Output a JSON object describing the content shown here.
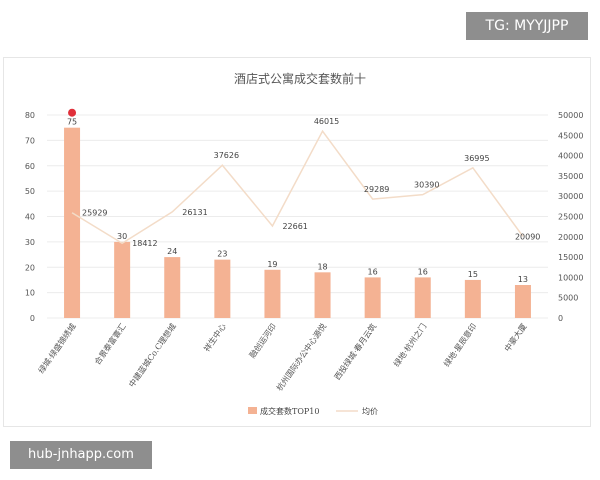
{
  "badges": {
    "tg": "TG: MYYJJPP",
    "site": "hub-jnhapp.com"
  },
  "colors": {
    "bar": "#f4b293",
    "line": "#f3dcc8",
    "grid": "#ececec",
    "marker": "#e0303a"
  },
  "chart_data": {
    "type": "bar",
    "title": "酒店式公寓成交套数前十",
    "categories": [
      "绿城·绿盛锦绣城",
      "合景泰富寰汇",
      "中建蓝城Co.C理想城",
      "祥生中心",
      "融创运河印",
      "杭州国际办公中心源悦",
      "西投绿城·春月云筑",
      "绿地·杭州之门",
      "绿地·星辰意印",
      "中豪大厦"
    ],
    "series": [
      {
        "name": "成交套数TOP10",
        "type": "bar",
        "axis": "left",
        "values": [
          75,
          30,
          24,
          23,
          19,
          18,
          16,
          16,
          15,
          13
        ],
        "labels": [
          "75",
          "30",
          "24",
          "23",
          "19",
          "18",
          "16",
          "16",
          "15",
          "13"
        ]
      },
      {
        "name": "均价",
        "type": "line",
        "axis": "right",
        "values": [
          25929,
          18412,
          26131,
          37626,
          22661,
          46015,
          29289,
          30390,
          36995,
          20090
        ],
        "labels": [
          "25929",
          "18412",
          "26131",
          "37626",
          "22661",
          "46015",
          "29289",
          "30390",
          "36995",
          "20090"
        ]
      }
    ],
    "ylim": [
      0,
      80
    ],
    "y_ticks": [
      "0",
      "10",
      "20",
      "30",
      "40",
      "50",
      "60",
      "70",
      "80"
    ],
    "y2lim": [
      0,
      50000
    ],
    "y2_ticks": [
      "0",
      "5000",
      "10000",
      "15000",
      "20000",
      "25000",
      "30000",
      "35000",
      "40000",
      "45000",
      "50000"
    ],
    "grid": true,
    "legend": "bottom"
  }
}
